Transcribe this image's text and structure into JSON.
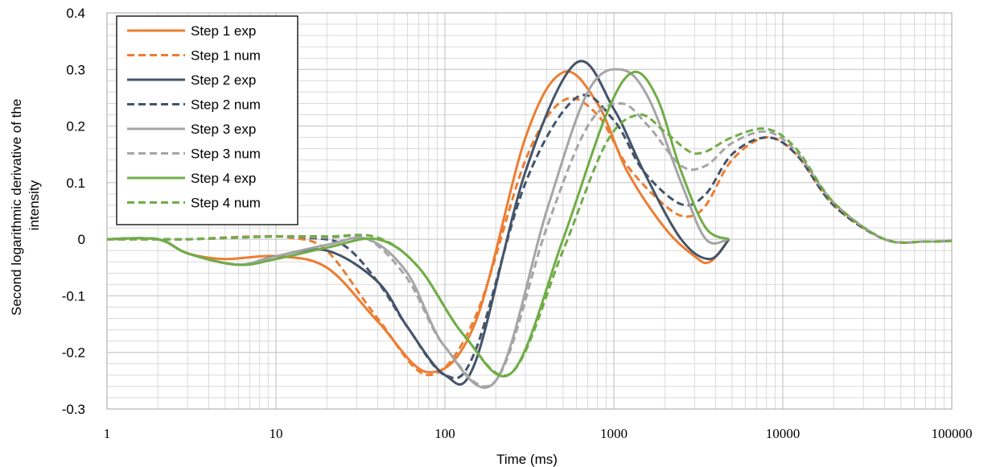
{
  "chart_data": {
    "type": "line",
    "title": "",
    "xlabel": "Time (ms)",
    "ylabel_lines": [
      "Second logarithmic derivative of the",
      "intensity"
    ],
    "x_scale": "log",
    "xlim": [
      1,
      100000
    ],
    "ylim": [
      -0.3,
      0.4
    ],
    "x_ticks": [
      "1",
      "10",
      "100",
      "1000",
      "10000",
      "100000"
    ],
    "y_ticks": [
      "-0.3",
      "-0.2",
      "-0.1",
      "0",
      "0.1",
      "0.2",
      "0.3",
      "0.4"
    ],
    "grid": true,
    "legend_position": "top-left",
    "series": [
      {
        "name": "Step 1 exp",
        "color": "#ED7D31",
        "dash": false,
        "x": [
          1,
          2,
          3,
          5,
          10,
          20,
          40,
          80,
          150,
          300,
          500,
          800,
          1200,
          2000,
          3000,
          3700,
          4800
        ],
        "y": [
          0,
          0,
          -0.025,
          -0.035,
          -0.03,
          -0.05,
          -0.145,
          -0.235,
          -0.15,
          0.18,
          0.295,
          0.24,
          0.12,
          0.02,
          -0.03,
          -0.04,
          0
        ]
      },
      {
        "name": "Step 1 num",
        "color": "#ED7D31",
        "dash": true,
        "x": [
          1,
          2,
          3,
          5,
          8,
          12,
          20,
          40,
          80,
          150,
          300,
          500,
          800,
          1200,
          2000,
          2700,
          3500,
          5000,
          8000,
          12000,
          20000,
          40000,
          70000,
          100000
        ],
        "y": [
          0,
          0,
          0,
          0.003,
          0.005,
          0.003,
          -0.02,
          -0.14,
          -0.24,
          -0.14,
          0.14,
          0.245,
          0.22,
          0.13,
          0.06,
          0.04,
          0.06,
          0.14,
          0.18,
          0.15,
          0.06,
          0,
          -0.004,
          -0.003
        ]
      },
      {
        "name": "Step 2 exp",
        "color": "#44546A",
        "dash": false,
        "x": [
          1,
          2,
          3,
          6,
          10,
          20,
          40,
          60,
          100,
          150,
          300,
          600,
          1000,
          1500,
          2500,
          3700,
          4800
        ],
        "y": [
          0,
          0,
          -0.025,
          -0.045,
          -0.03,
          -0.02,
          -0.075,
          -0.155,
          -0.24,
          -0.22,
          0.12,
          0.312,
          0.23,
          0.12,
          0.0,
          -0.035,
          0
        ]
      },
      {
        "name": "Step 2 num",
        "color": "#44546A",
        "dash": true,
        "x": [
          1,
          2,
          3,
          6,
          10,
          15,
          25,
          40,
          60,
          100,
          150,
          300,
          600,
          1000,
          1500,
          2500,
          3500,
          5000,
          8000,
          12000,
          20000,
          40000,
          70000,
          100000
        ],
        "y": [
          0,
          0,
          0,
          0.003,
          0.005,
          0.003,
          -0.01,
          -0.075,
          -0.155,
          -0.24,
          -0.2,
          0.1,
          0.25,
          0.21,
          0.12,
          0.062,
          0.08,
          0.15,
          0.18,
          0.15,
          0.06,
          0,
          -0.004,
          -0.003
        ]
      },
      {
        "name": "Step 3 exp",
        "color": "#A5A5A5",
        "dash": false,
        "x": [
          1,
          2,
          3,
          6,
          10,
          20,
          35,
          60,
          100,
          200,
          400,
          700,
          1100,
          1600,
          2500,
          3500,
          4800
        ],
        "y": [
          0,
          0,
          -0.025,
          -0.045,
          -0.03,
          -0.01,
          0.0,
          -0.06,
          -0.19,
          -0.25,
          0.05,
          0.26,
          0.3,
          0.25,
          0.1,
          0.0,
          0
        ]
      },
      {
        "name": "Step 3 num",
        "color": "#A5A5A5",
        "dash": true,
        "x": [
          1,
          2,
          3,
          6,
          10,
          20,
          35,
          60,
          100,
          200,
          400,
          700,
          1100,
          1600,
          2500,
          3500,
          5000,
          8000,
          12000,
          20000,
          40000,
          70000,
          100000
        ],
        "y": [
          0,
          0,
          0,
          0.003,
          0.005,
          0.003,
          0.0,
          -0.07,
          -0.19,
          -0.25,
          0.02,
          0.2,
          0.24,
          0.2,
          0.13,
          0.13,
          0.17,
          0.19,
          0.155,
          0.065,
          0,
          -0.004,
          -0.003
        ]
      },
      {
        "name": "Step 4 exp",
        "color": "#70AD47",
        "dash": false,
        "x": [
          1,
          2,
          3,
          6,
          10,
          20,
          40,
          70,
          130,
          250,
          500,
          900,
          1300,
          1800,
          2500,
          3500,
          4800
        ],
        "y": [
          0,
          0,
          -0.025,
          -0.045,
          -0.035,
          -0.015,
          0.0,
          -0.05,
          -0.17,
          -0.235,
          0.0,
          0.22,
          0.295,
          0.25,
          0.12,
          0.02,
          0
        ]
      },
      {
        "name": "Step 4 num",
        "color": "#70AD47",
        "dash": true,
        "x": [
          1,
          2,
          3,
          6,
          10,
          20,
          40,
          70,
          130,
          250,
          500,
          900,
          1400,
          2000,
          2800,
          3500,
          5000,
          8000,
          12000,
          20000,
          40000,
          70000,
          100000
        ],
        "y": [
          0,
          0,
          0,
          0.003,
          0.005,
          0.005,
          0.003,
          -0.05,
          -0.17,
          -0.235,
          -0.02,
          0.17,
          0.22,
          0.19,
          0.155,
          0.155,
          0.18,
          0.195,
          0.16,
          0.065,
          0,
          -0.004,
          -0.003
        ]
      }
    ]
  }
}
